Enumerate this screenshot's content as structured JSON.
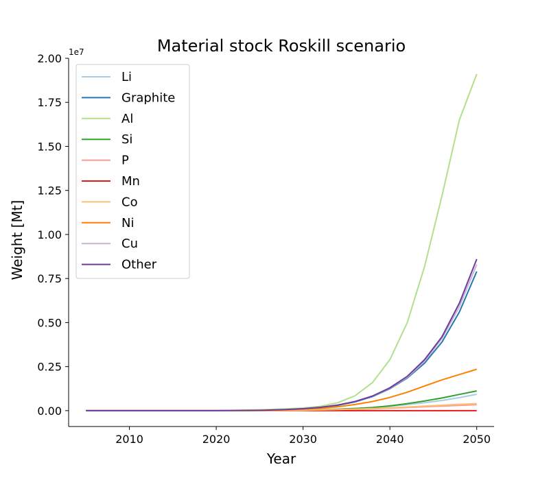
{
  "chart_data": {
    "type": "line",
    "title": "Material stock Roskill scenario",
    "xlabel": "Year",
    "ylabel": "Weight [Mt]",
    "y_offset_label": "1e7",
    "xlim": [
      2003,
      2052
    ],
    "ylim": [
      -0.09,
      2.0
    ],
    "y_scale_note": "values in units of 1e7",
    "x_ticks": [
      2010,
      2020,
      2030,
      2040,
      2050
    ],
    "y_ticks": [
      0.0,
      0.25,
      0.5,
      0.75,
      1.0,
      1.25,
      1.5,
      1.75,
      2.0
    ],
    "y_tick_labels": [
      "0.00",
      "0.25",
      "0.50",
      "0.75",
      "1.00",
      "1.25",
      "1.50",
      "1.75",
      "2.00"
    ],
    "grid": false,
    "legend_position": "top-left",
    "x": [
      2005,
      2010,
      2015,
      2020,
      2025,
      2028,
      2030,
      2032,
      2034,
      2036,
      2038,
      2040,
      2042,
      2044,
      2046,
      2048,
      2050
    ],
    "series": [
      {
        "name": "Li",
        "color": "#a6cee3",
        "values": [
          0,
          0,
          0,
          0,
          0.001,
          0.002,
          0.004,
          0.006,
          0.009,
          0.013,
          0.018,
          0.025,
          0.034,
          0.045,
          0.058,
          0.074,
          0.093
        ]
      },
      {
        "name": "Graphite",
        "color": "#1f78b4",
        "values": [
          0,
          0,
          0,
          0,
          0.002,
          0.006,
          0.01,
          0.018,
          0.03,
          0.05,
          0.08,
          0.125,
          0.185,
          0.27,
          0.39,
          0.56,
          0.79
        ]
      },
      {
        "name": "Al",
        "color": "#b2df8a",
        "values": [
          0,
          0,
          0,
          0,
          0.005,
          0.01,
          0.015,
          0.025,
          0.045,
          0.085,
          0.16,
          0.29,
          0.5,
          0.82,
          1.22,
          1.65,
          1.91
        ]
      },
      {
        "name": "Si",
        "color": "#33a02c",
        "values": [
          0,
          0,
          0,
          0,
          0.001,
          0.002,
          0.003,
          0.005,
          0.008,
          0.012,
          0.018,
          0.027,
          0.04,
          0.055,
          0.072,
          0.092,
          0.112
        ]
      },
      {
        "name": "P",
        "color": "#fb9a99",
        "values": [
          0,
          0,
          0,
          0,
          0,
          0.001,
          0.002,
          0.003,
          0.005,
          0.007,
          0.01,
          0.014,
          0.018,
          0.022,
          0.026,
          0.03,
          0.034
        ]
      },
      {
        "name": "Mn",
        "color": "#e31a1c",
        "values": [
          0,
          0,
          0,
          0,
          0,
          0,
          0,
          0,
          0,
          0,
          0,
          0,
          0,
          0,
          0,
          0,
          0
        ]
      },
      {
        "name": "Co",
        "color": "#fdbf6f",
        "values": [
          0,
          0,
          0,
          0,
          0,
          0.001,
          0.002,
          0.004,
          0.006,
          0.009,
          0.012,
          0.016,
          0.021,
          0.026,
          0.031,
          0.036,
          0.04
        ]
      },
      {
        "name": "Ni",
        "color": "#ff7f00",
        "values": [
          0,
          0,
          0,
          0,
          0.001,
          0.004,
          0.008,
          0.013,
          0.022,
          0.035,
          0.052,
          0.075,
          0.105,
          0.14,
          0.175,
          0.205,
          0.235
        ]
      },
      {
        "name": "Cu",
        "color": "#cab2d6",
        "values": [
          0,
          0,
          0,
          0,
          0.002,
          0.006,
          0.011,
          0.019,
          0.032,
          0.052,
          0.082,
          0.128,
          0.19,
          0.28,
          0.41,
          0.59,
          0.83
        ]
      },
      {
        "name": "Other",
        "color": "#6a3d9a",
        "values": [
          0,
          0,
          0,
          0,
          0.002,
          0.006,
          0.011,
          0.019,
          0.032,
          0.052,
          0.083,
          0.13,
          0.195,
          0.29,
          0.42,
          0.61,
          0.86
        ]
      }
    ]
  }
}
